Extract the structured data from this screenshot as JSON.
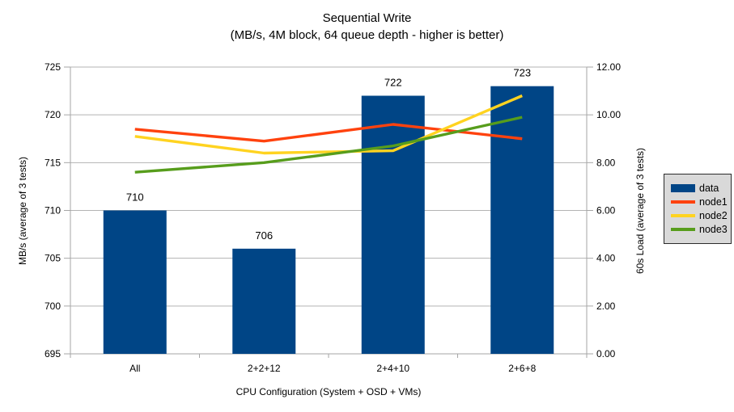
{
  "title": "Sequential Write",
  "subtitle": "(MB/s, 4M block, 64 queue depth - higher is better)",
  "chart_data": {
    "type": "bar",
    "subtype": "combo bar+line, dual y-axes",
    "categories": [
      "All",
      "2+2+12",
      "2+4+10",
      "2+6+8"
    ],
    "series": [
      {
        "name": "data",
        "plot": "bar",
        "axis": "left",
        "values": [
          710,
          706,
          722,
          723
        ],
        "color": "#004586",
        "value_labels": [
          "710",
          "706",
          "722",
          "723"
        ]
      },
      {
        "name": "node1",
        "plot": "line",
        "axis": "right",
        "values": [
          9.4,
          8.9,
          9.6,
          9.0
        ],
        "color": "#ff420e"
      },
      {
        "name": "node2",
        "plot": "line",
        "axis": "right",
        "values": [
          9.1,
          8.4,
          8.5,
          10.8
        ],
        "color": "#ffd320"
      },
      {
        "name": "node3",
        "plot": "line",
        "axis": "right",
        "values": [
          7.6,
          8.0,
          8.7,
          9.9
        ],
        "color": "#579d1c"
      }
    ],
    "title": "Sequential Write",
    "subtitle": "(MB/s, 4M block, 64 queue depth - higher is better)",
    "xlabel": "CPU Configuration (System + OSD + VMs)",
    "ylabel_left": "MB/s (average of 3 tests)",
    "ylabel_right": "60s Load (average of 3 tests)",
    "ylim_left": [
      695,
      725
    ],
    "yticks_left": [
      "695",
      "700",
      "705",
      "710",
      "715",
      "720",
      "725"
    ],
    "ylim_right": [
      0,
      12
    ],
    "yticks_right": [
      "0.00",
      "2.00",
      "4.00",
      "6.00",
      "8.00",
      "10.00",
      "12.00"
    ],
    "grid": true,
    "legend_position": "right",
    "legend_entries": [
      "data",
      "node1",
      "node2",
      "node3"
    ]
  },
  "colors": {
    "background": "#ffffff",
    "gridline": "#b3b3b3",
    "axis_line": "#a6a6a6",
    "text": "#000000",
    "legend_bg": "#d9d9d9",
    "legend_border": "#2b2b2b",
    "bar": "#004586",
    "node1": "#ff420e",
    "node2": "#ffd320",
    "node3": "#579d1c"
  }
}
